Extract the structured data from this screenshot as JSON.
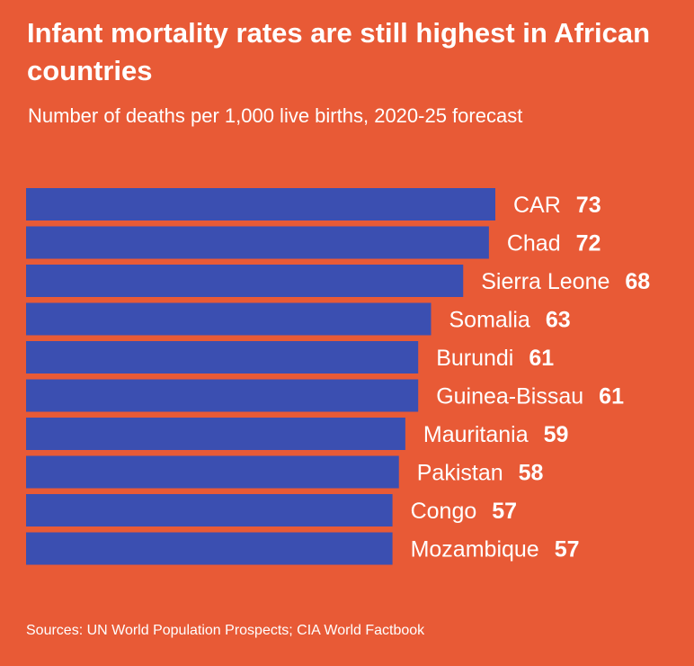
{
  "colors": {
    "background": "#e85a36",
    "bar": "#3b4fb1",
    "text": "#ffffff"
  },
  "chart_data": {
    "type": "bar",
    "orientation": "horizontal",
    "title": "Infant mortality rates are still highest in African countries",
    "subtitle": "Number of deaths per 1,000 live births, 2020-25 forecast",
    "categories": [
      "CAR",
      "Chad",
      "Sierra Leone",
      "Somalia",
      "Burundi",
      "Guinea-Bissau",
      "Mauritania",
      "Pakistan",
      "Congo",
      "Mozambique"
    ],
    "values": [
      73,
      72,
      68,
      63,
      61,
      61,
      59,
      58,
      57,
      57
    ],
    "xlabel": "",
    "ylabel": "",
    "xlim": [
      0,
      73
    ],
    "grid": false,
    "legend": "none",
    "source": "Sources: UN World Population Prospects; CIA World Factbook"
  }
}
